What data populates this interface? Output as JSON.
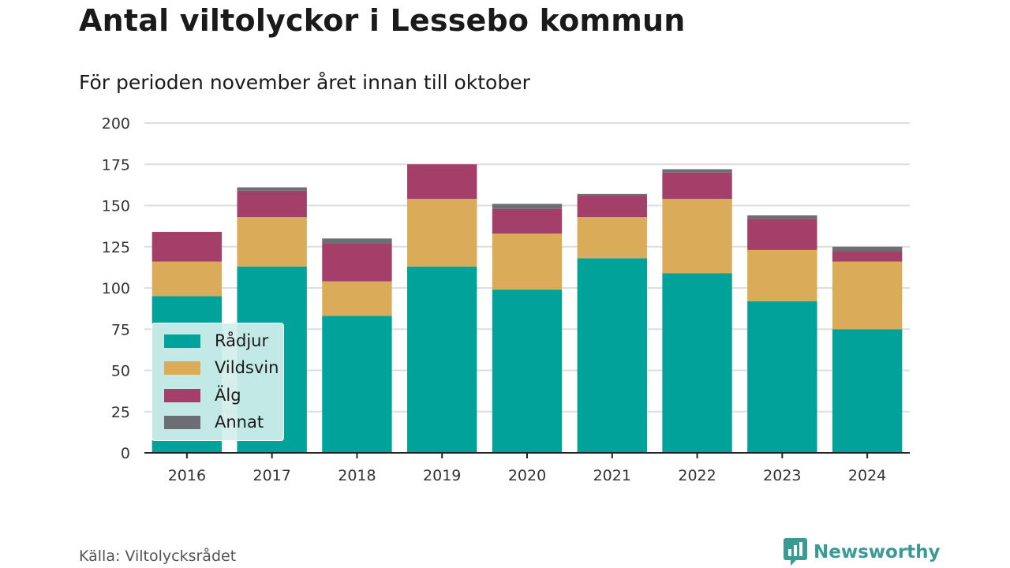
{
  "header": {
    "title": "Antal viltolyckor i Lessebo kommun",
    "subtitle": "För perioden november året innan till oktober"
  },
  "footer": {
    "source": "Källa: Viltolycksrådet",
    "brand": "Newsworthy",
    "brand_icon": "newsworthy-logo-icon"
  },
  "chart_data": {
    "type": "bar",
    "stacked": true,
    "categories": [
      "2016",
      "2017",
      "2018",
      "2019",
      "2020",
      "2021",
      "2022",
      "2023",
      "2024"
    ],
    "series": [
      {
        "name": "Rådjur",
        "color": "#00a29a",
        "values": [
          95,
          113,
          83,
          113,
          99,
          118,
          109,
          92,
          75
        ]
      },
      {
        "name": "Vildsvin",
        "color": "#daac59",
        "values": [
          21,
          30,
          21,
          41,
          34,
          25,
          45,
          31,
          41
        ]
      },
      {
        "name": "Älg",
        "color": "#a43f69",
        "values": [
          18,
          16,
          23,
          21,
          15,
          13,
          16,
          19,
          6
        ]
      },
      {
        "name": "Annat",
        "color": "#6d6e73",
        "values": [
          0,
          2,
          3,
          0,
          3,
          1,
          2,
          2,
          3
        ]
      }
    ],
    "ylim": [
      0,
      200
    ],
    "yticks": [
      "0",
      "25",
      "50",
      "75",
      "100",
      "125",
      "150",
      "175",
      "200"
    ],
    "grid": true,
    "legend_position": "bottom-left"
  }
}
